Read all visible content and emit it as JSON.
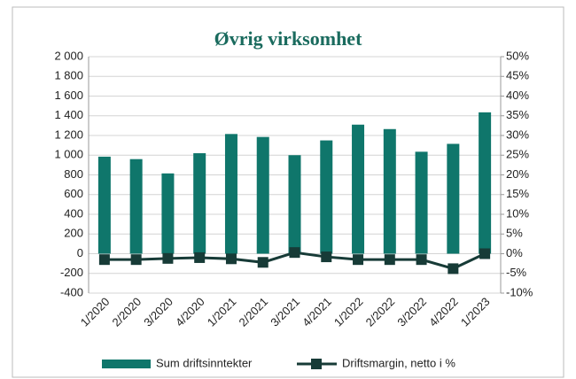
{
  "chart_data": {
    "type": "bar-line",
    "title": "Øvrig virksomhet",
    "categories": [
      "1/2020",
      "2/2020",
      "3/2020",
      "4/2020",
      "1/2021",
      "2/2021",
      "3/2021",
      "4/2021",
      "1/2022",
      "2/2022",
      "3/2022",
      "4/2022",
      "1/2023"
    ],
    "series": [
      {
        "name": "Sum driftsinntekter",
        "type": "bar",
        "color": "#0f766b",
        "values": [
          985,
          960,
          815,
          1020,
          1215,
          1185,
          1000,
          1150,
          1310,
          1265,
          1035,
          1115,
          1435
        ]
      },
      {
        "name": "Driftsmargin, netto i %",
        "type": "line",
        "axis": "y2",
        "color": "#173b37",
        "values": [
          -1.5,
          -1.5,
          -1.2,
          -1.0,
          -1.3,
          -2.2,
          0.3,
          -0.8,
          -1.5,
          -1.5,
          -1.5,
          -3.8,
          0.0
        ]
      }
    ],
    "ylim": [
      -400,
      2000
    ],
    "yticks": [
      -400,
      -200,
      0,
      200,
      400,
      600,
      800,
      {
        "value": 1000,
        "label": "1 000"
      },
      {
        "value": 1200,
        "label": "1 200"
      },
      {
        "value": 1400,
        "label": "1 400"
      },
      {
        "value": 1600,
        "label": "1 600"
      },
      {
        "value": 1800,
        "label": "1 800"
      },
      {
        "value": 2000,
        "label": "2 000"
      }
    ],
    "y2lim": [
      -10,
      50
    ],
    "y2ticks": [
      {
        "value": -10,
        "label": "-10%"
      },
      {
        "value": -5,
        "label": "-5%"
      },
      {
        "value": 0,
        "label": "0%"
      },
      {
        "value": 5,
        "label": "5%"
      },
      {
        "value": 10,
        "label": "10%"
      },
      {
        "value": 15,
        "label": "15%"
      },
      {
        "value": 20,
        "label": "20%"
      },
      {
        "value": 25,
        "label": "25%"
      },
      {
        "value": 30,
        "label": "30%"
      },
      {
        "value": 35,
        "label": "35%"
      },
      {
        "value": 40,
        "label": "40%"
      },
      {
        "value": 45,
        "label": "45%"
      },
      {
        "value": 50,
        "label": "50%"
      }
    ],
    "grid": true,
    "legend": "bottom"
  }
}
